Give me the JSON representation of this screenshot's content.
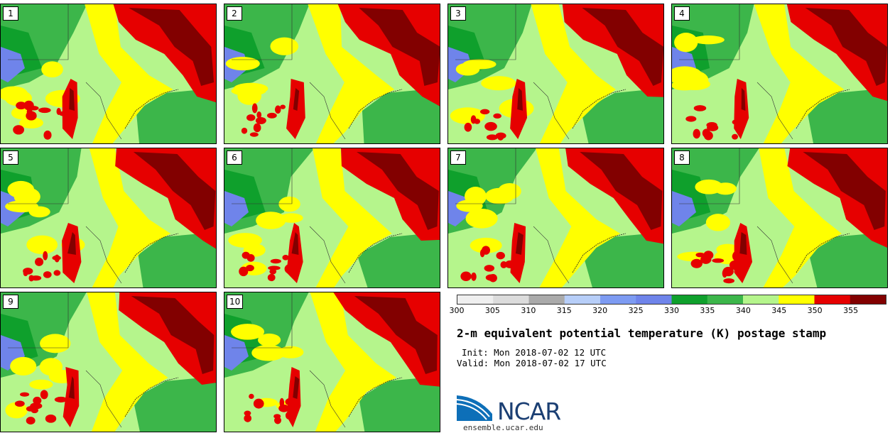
{
  "panels": [
    {
      "label": "1"
    },
    {
      "label": "2"
    },
    {
      "label": "3"
    },
    {
      "label": "4"
    },
    {
      "label": "5"
    },
    {
      "label": "6"
    },
    {
      "label": "7"
    },
    {
      "label": "8"
    },
    {
      "label": "9"
    },
    {
      "label": "10"
    }
  ],
  "colorbar": {
    "ticks": [
      "300",
      "305",
      "310",
      "315",
      "320",
      "325",
      "330",
      "335",
      "340",
      "345",
      "350",
      "355"
    ],
    "colors": [
      "#efefef",
      "#dcdcdc",
      "#aaaaaa",
      "#b7cef8",
      "#7d9bf2",
      "#6f84ea",
      "#0fa02c",
      "#3cb64a",
      "#b5f58c",
      "#ffff00",
      "#e60000",
      "#820000"
    ]
  },
  "title": "2-m equivalent potential temperature (K) postage stamp",
  "init": "Init: Mon 2018-07-02 12 UTC",
  "valid": "Valid: Mon 2018-07-02 17 UTC",
  "logo": {
    "text": "NCAR",
    "site": "ensemble.ucar.edu"
  },
  "colors": {
    "green_dark": "#3cb64a",
    "green_light": "#b5f58c",
    "yellow": "#ffff00",
    "red": "#e60000",
    "dark_red": "#820000",
    "blue": "#6f84ea",
    "green_deep": "#0fa02c"
  }
}
